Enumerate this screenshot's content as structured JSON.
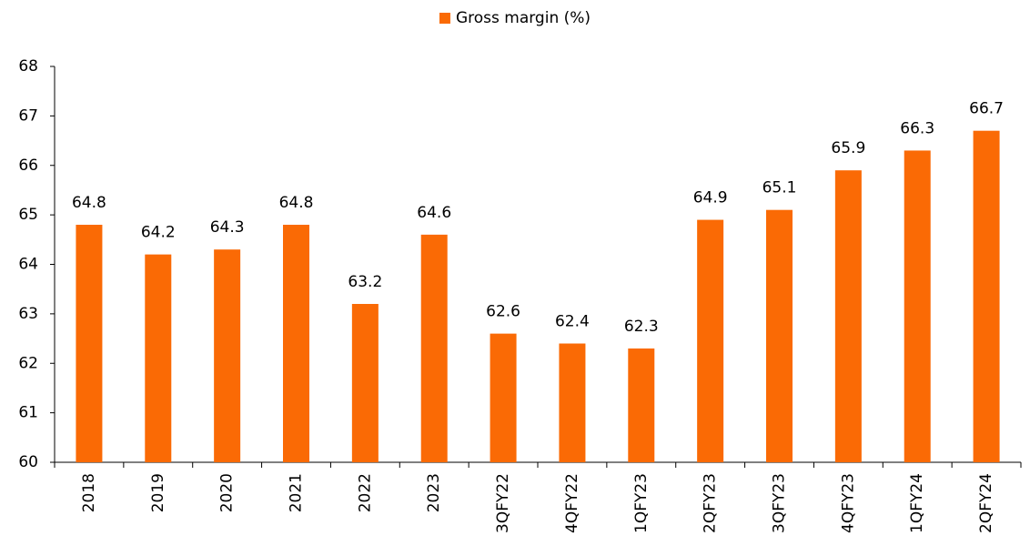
{
  "chart_data": {
    "type": "bar",
    "categories": [
      "2018",
      "2019",
      "2020",
      "2021",
      "2022",
      "2023",
      "3QFY22",
      "4QFY22",
      "1QFY23",
      "2QFY23",
      "3QFY23",
      "4QFY23",
      "1QFY24",
      "2QFY24"
    ],
    "series": [
      {
        "name": "Gross margin (%)",
        "color": "#fa6a05",
        "values": [
          64.8,
          64.2,
          64.3,
          64.8,
          63.2,
          64.6,
          62.6,
          62.4,
          62.3,
          64.9,
          65.1,
          65.9,
          66.3,
          66.7
        ]
      }
    ],
    "ylim": [
      60,
      68
    ],
    "yticks": [
      60,
      61,
      62,
      63,
      64,
      65,
      66,
      67,
      68
    ],
    "legend": "top",
    "grid": false
  }
}
